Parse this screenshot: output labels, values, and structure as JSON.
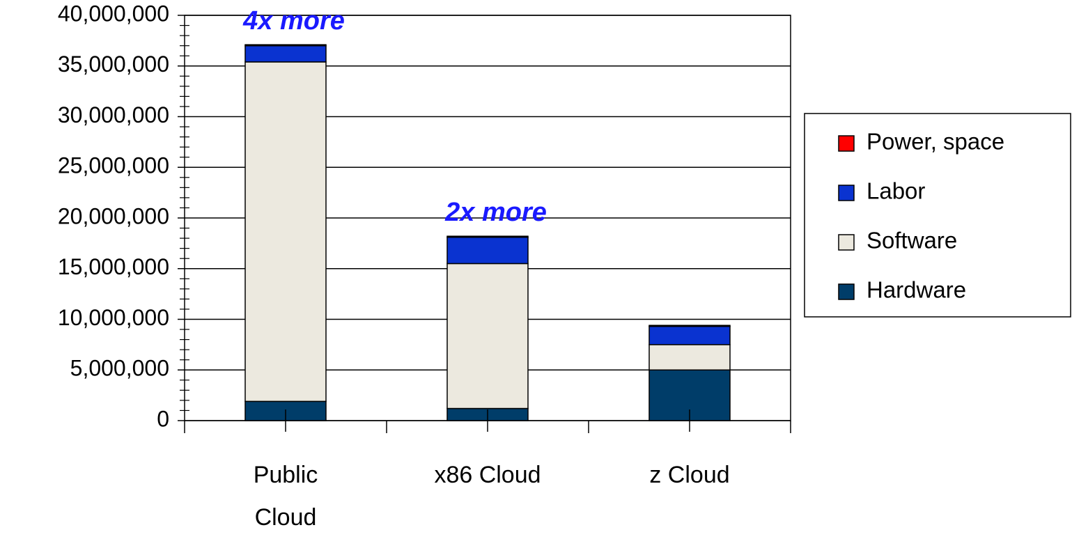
{
  "chart_data": {
    "type": "stacked_bar",
    "categories": [
      "Public Cloud",
      "x86 Cloud",
      "z Cloud"
    ],
    "series": [
      {
        "name": "Hardware",
        "color": "#003d69",
        "values": [
          1900000,
          1200000,
          5000000
        ]
      },
      {
        "name": "Software",
        "color": "#ece9df",
        "values": [
          33500000,
          14300000,
          2500000
        ]
      },
      {
        "name": "Labor",
        "color": "#0a33d0",
        "values": [
          1600000,
          2600000,
          1800000
        ]
      },
      {
        "name": "Power, space",
        "color": "#ff0000",
        "values": [
          100000,
          100000,
          100000
        ]
      }
    ],
    "annotations": [
      "4x more",
      "2x more"
    ],
    "annotation_color": "#1a1aff",
    "ylim": [
      0,
      40000000
    ],
    "yticks": [
      0,
      {
        "value": 5000000,
        "label": "5,000,000"
      },
      {
        "value": 10000000,
        "label": "10,000,000"
      },
      {
        "value": 15000000,
        "label": "15,000,000"
      },
      {
        "value": 20000000,
        "label": "20,000,000"
      },
      {
        "value": 25000000,
        "label": "25,000,000"
      },
      {
        "value": 30000000,
        "label": "30,000,000"
      },
      {
        "value": 35000000,
        "label": "35,000,000"
      },
      {
        "value": 40000000,
        "label": "40,000,000"
      }
    ],
    "grid": true,
    "legend": "right"
  }
}
